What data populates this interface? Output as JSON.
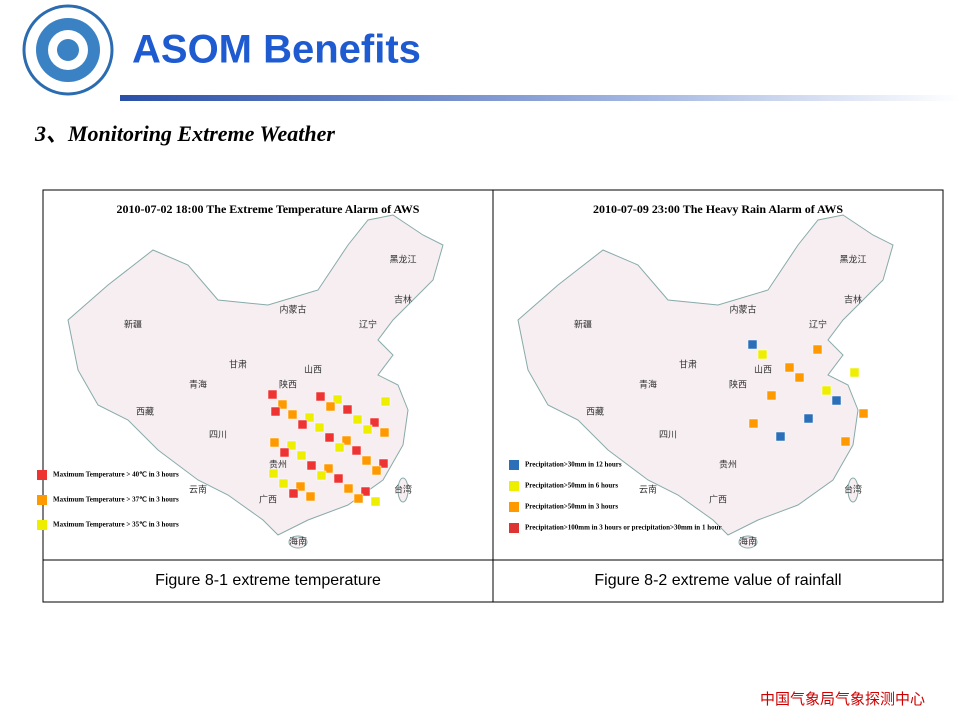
{
  "header": {
    "title": "ASOM Benefits",
    "subtitle": "3、Monitoring Extreme Weather"
  },
  "figures": [
    {
      "map_title": "2010-07-02 18:00 The Extreme Temperature Alarm of AWS",
      "legend": [
        "Maximum Temperature > 40℃ in 3 hours",
        "Maximum Temperature > 37℃ in 3 hours",
        "Maximum Temperature > 35℃ in 3 hours"
      ],
      "provinces": [
        "新疆",
        "西藏",
        "青海",
        "甘肃",
        "内蒙古",
        "黑龙江",
        "吉林",
        "辽宁",
        "山西",
        "陕西",
        "四川",
        "贵州",
        "云南",
        "广西",
        "台湾",
        "海南"
      ],
      "caption": "Figure 8-1 extreme temperature"
    },
    {
      "map_title": "2010-07-09 23:00 The Heavy Rain Alarm of AWS",
      "legend": [
        "Precipitation>30mm in 12 hours",
        "Precipitation>50mm in 6 hours",
        "Precipitation>50mm in 3 hours",
        "Precipitation>100mm in 3 hours or precipitation>30mm in 1 hour"
      ],
      "provinces": [
        "新疆",
        "西藏",
        "青海",
        "甘肃",
        "内蒙古",
        "黑龙江",
        "吉林",
        "辽宁",
        "山西",
        "陕西",
        "四川",
        "贵州",
        "云南",
        "广西",
        "台湾",
        "海南"
      ],
      "caption": "Figure 8-2 extreme value of rainfall"
    }
  ],
  "footer": "中国气象局气象探测中心"
}
